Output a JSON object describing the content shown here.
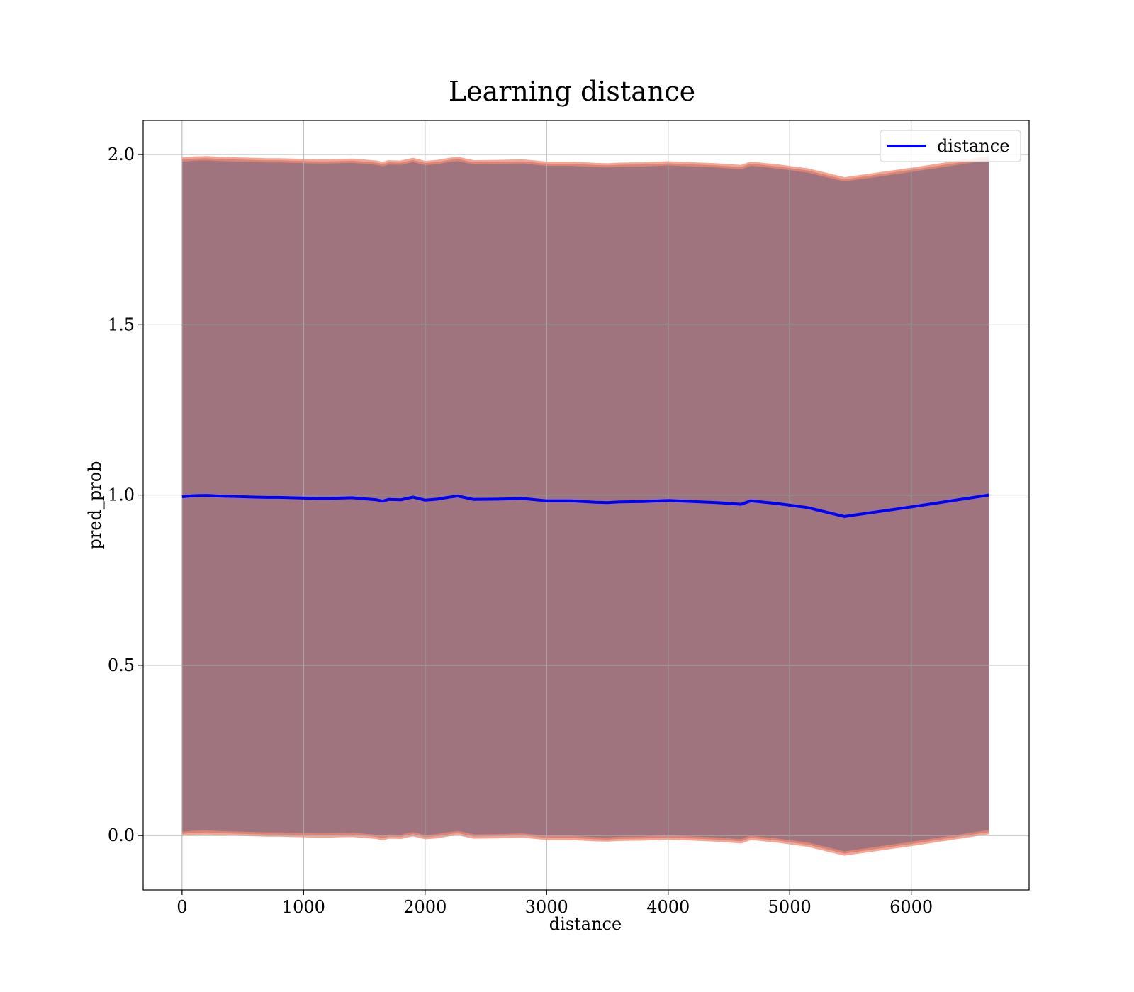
{
  "chart_data": {
    "type": "line",
    "title": "Learning distance",
    "xlabel": "distance",
    "ylabel": "pred_prob",
    "xlim": [
      -320,
      6970
    ],
    "ylim": [
      -0.16,
      2.1
    ],
    "xticks": [
      0,
      1000,
      2000,
      3000,
      4000,
      5000,
      6000
    ],
    "xtick_labels": [
      "0",
      "1000",
      "2000",
      "3000",
      "4000",
      "5000",
      "6000"
    ],
    "yticks": [
      0.0,
      0.5,
      1.0,
      1.5,
      2.0
    ],
    "ytick_labels": [
      "0.0",
      "0.5",
      "1.0",
      "1.5",
      "2.0"
    ],
    "grid": true,
    "legend": {
      "position": "top-right",
      "entries": [
        "distance"
      ]
    },
    "series": [
      {
        "name": "distance",
        "color": "#0000ff",
        "x": [
          0,
          100,
          200,
          300,
          400,
          500,
          600,
          700,
          800,
          900,
          1000,
          1100,
          1200,
          1300,
          1400,
          1500,
          1600,
          1650,
          1700,
          1800,
          1900,
          2000,
          2100,
          2200,
          2270,
          2400,
          2600,
          2800,
          3000,
          3200,
          3400,
          3500,
          3600,
          3800,
          4000,
          4200,
          4400,
          4600,
          4680,
          4900,
          5150,
          5450,
          6000,
          6640
        ],
        "y": [
          0.995,
          0.998,
          0.999,
          0.997,
          0.996,
          0.995,
          0.994,
          0.993,
          0.993,
          0.992,
          0.991,
          0.99,
          0.99,
          0.991,
          0.992,
          0.989,
          0.986,
          0.982,
          0.987,
          0.986,
          0.994,
          0.985,
          0.988,
          0.994,
          0.997,
          0.987,
          0.988,
          0.99,
          0.983,
          0.983,
          0.979,
          0.978,
          0.98,
          0.981,
          0.984,
          0.981,
          0.978,
          0.973,
          0.983,
          0.975,
          0.963,
          0.937,
          0.965,
          1.0
        ]
      }
    ],
    "band": {
      "color": "#7b3f4c",
      "edge_color": "#f08870",
      "upper_offset": 0.99,
      "lower_offset": 0.99
    }
  }
}
